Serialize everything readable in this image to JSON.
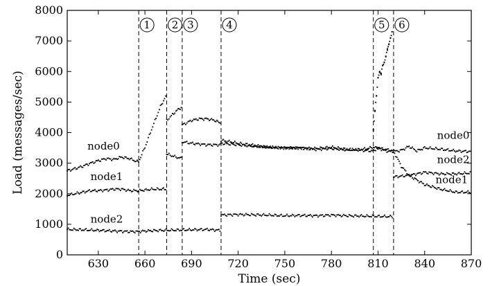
{
  "chart_data": {
    "type": "scatter",
    "title": "",
    "xlabel": "Time (sec)",
    "ylabel": "Load (messages/sec)",
    "xlim": [
      610,
      870
    ],
    "ylim": [
      0,
      8000
    ],
    "xticks": [
      630,
      660,
      690,
      720,
      750,
      780,
      810,
      840,
      870
    ],
    "yticks": [
      0,
      1000,
      2000,
      3000,
      4000,
      5000,
      6000,
      7000,
      8000
    ],
    "grid": false,
    "legend": "none",
    "events": [
      {
        "label": "1",
        "x": 656
      },
      {
        "label": "2",
        "x": 674
      },
      {
        "label": "3",
        "x": 684
      },
      {
        "label": "4",
        "x": 709
      },
      {
        "label": "5",
        "x": 807
      },
      {
        "label": "6",
        "x": 820
      }
    ],
    "series": [
      {
        "name": "node0",
        "label_positions": [
          {
            "x": 623,
            "y": 3450
          },
          {
            "x": 848,
            "y": 3800
          }
        ],
        "x": [
          610,
          615,
          620,
          625,
          630,
          635,
          640,
          645,
          650,
          655,
          656,
          660,
          665,
          670,
          674,
          674,
          680,
          684,
          684,
          690,
          695,
          700,
          705,
          709,
          709,
          715,
          720,
          730,
          740,
          750,
          760,
          770,
          780,
          790,
          800,
          807,
          810,
          815,
          820,
          825,
          830,
          835,
          840,
          850,
          860,
          870
        ],
        "y": [
          2750,
          2820,
          2900,
          3000,
          3080,
          3150,
          3120,
          3200,
          3150,
          3050,
          3050,
          3520,
          4200,
          4850,
          5250,
          4400,
          4700,
          4850,
          4250,
          4400,
          4450,
          4450,
          4400,
          4300,
          3750,
          3700,
          3650,
          3580,
          3520,
          3500,
          3500,
          3480,
          3520,
          3450,
          3420,
          3400,
          3500,
          3400,
          3380,
          3420,
          3550,
          3400,
          3500,
          3460,
          3400,
          3380
        ]
      },
      {
        "name": "node1",
        "label_positions": [
          {
            "x": 625,
            "y": 2450
          },
          {
            "x": 847,
            "y": 2350
          }
        ],
        "x": [
          610,
          615,
          620,
          625,
          630,
          635,
          640,
          645,
          650,
          655,
          656,
          660,
          665,
          670,
          674,
          674,
          680,
          684,
          684,
          690,
          700,
          709,
          709,
          720,
          730,
          740,
          750,
          760,
          770,
          780,
          790,
          800,
          807,
          815,
          820,
          825,
          830,
          840,
          850,
          860,
          870
        ],
        "y": [
          1950,
          2000,
          2050,
          2100,
          2100,
          2120,
          2150,
          2150,
          2100,
          2100,
          2100,
          2120,
          2150,
          2150,
          2150,
          3300,
          3200,
          3150,
          3700,
          3650,
          3600,
          3600,
          3650,
          3600,
          3550,
          3520,
          3500,
          3500,
          3450,
          3480,
          3430,
          3450,
          3520,
          3450,
          3400,
          2900,
          2600,
          2300,
          2150,
          2050,
          2050
        ]
      },
      {
        "name": "node2",
        "label_positions": [
          {
            "x": 625,
            "y": 1050
          },
          {
            "x": 848,
            "y": 3000
          }
        ],
        "x": [
          610,
          620,
          630,
          640,
          650,
          655,
          660,
          670,
          680,
          690,
          700,
          709,
          709,
          720,
          730,
          740,
          750,
          760,
          770,
          780,
          790,
          800,
          810,
          820,
          820,
          830,
          840,
          850,
          860,
          870
        ],
        "y": [
          830,
          820,
          800,
          780,
          760,
          760,
          780,
          800,
          810,
          820,
          830,
          800,
          1300,
          1320,
          1310,
          1300,
          1280,
          1290,
          1280,
          1300,
          1280,
          1270,
          1260,
          1250,
          2550,
          2600,
          2700,
          2650,
          2650,
          2680
        ]
      },
      {
        "name": "",
        "x": [
          807,
          808,
          809,
          810,
          811,
          812,
          813,
          814,
          815,
          816,
          817,
          818,
          819
        ],
        "y": [
          4100,
          4700,
          5200,
          5800,
          6000,
          5900,
          6200,
          6300,
          6500,
          6700,
          6900,
          7100,
          7300
        ]
      }
    ]
  }
}
